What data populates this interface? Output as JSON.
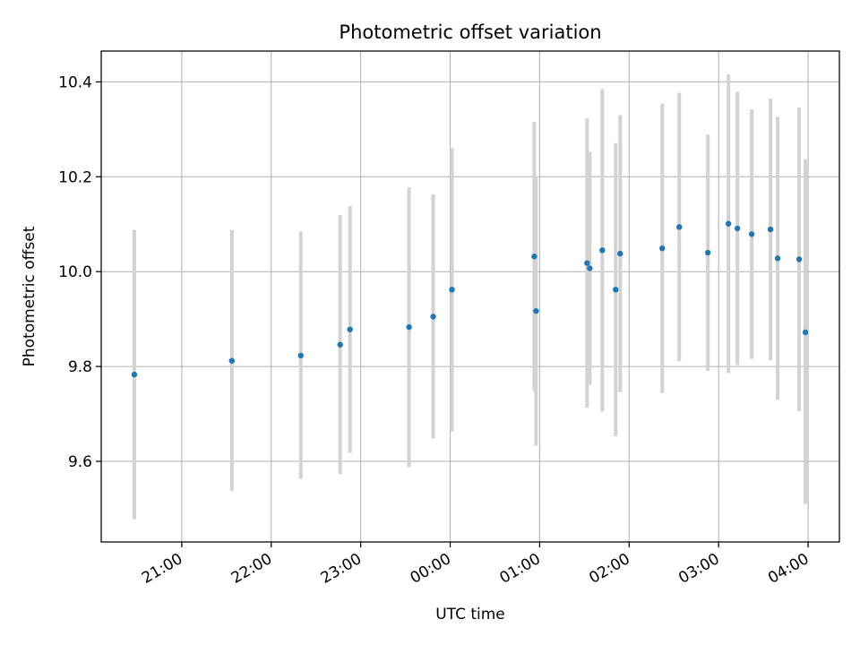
{
  "chart_data": {
    "type": "scatter",
    "title": "Photometric offset variation",
    "xlabel": "UTC time",
    "ylabel": "Photometric offset",
    "x_unit": "UTC hours (values past 24 are after midnight of the following day)",
    "xlim": [
      20.1,
      28.35
    ],
    "ylim": [
      9.43,
      10.465
    ],
    "x_ticks": [
      {
        "value": 21,
        "label": "21:00"
      },
      {
        "value": 22,
        "label": "22:00"
      },
      {
        "value": 23,
        "label": "23:00"
      },
      {
        "value": 24,
        "label": "00:00"
      },
      {
        "value": 25,
        "label": "01:00"
      },
      {
        "value": 26,
        "label": "02:00"
      },
      {
        "value": 27,
        "label": "03:00"
      },
      {
        "value": 28,
        "label": "04:00"
      }
    ],
    "y_ticks": [
      {
        "value": 9.6,
        "label": "9.6"
      },
      {
        "value": 9.8,
        "label": "9.8"
      },
      {
        "value": 10.0,
        "label": "10.0"
      },
      {
        "value": 10.2,
        "label": "10.2"
      },
      {
        "value": 10.4,
        "label": "10.4"
      }
    ],
    "grid": true,
    "colors": {
      "point": "#1f77b4",
      "errorbar": "#d3d3d3",
      "grid": "#b0b0b0",
      "axes": "#000000"
    },
    "points": [
      {
        "time": "20:28",
        "x": 20.47,
        "y": 9.783,
        "low": 9.478,
        "high": 10.088
      },
      {
        "time": "21:34",
        "x": 21.56,
        "y": 9.812,
        "low": 9.538,
        "high": 10.088
      },
      {
        "time": "22:20",
        "x": 22.33,
        "y": 9.823,
        "low": 9.563,
        "high": 10.085
      },
      {
        "time": "22:46",
        "x": 22.77,
        "y": 9.846,
        "low": 9.573,
        "high": 10.119
      },
      {
        "time": "22:53",
        "x": 22.88,
        "y": 9.878,
        "low": 9.618,
        "high": 10.138
      },
      {
        "time": "23:32",
        "x": 23.54,
        "y": 9.883,
        "low": 9.588,
        "high": 10.178
      },
      {
        "time": "23:49",
        "x": 23.81,
        "y": 9.905,
        "low": 9.648,
        "high": 10.163
      },
      {
        "time": "00:01",
        "x": 24.02,
        "y": 9.962,
        "low": 9.663,
        "high": 10.261
      },
      {
        "time": "00:56",
        "x": 24.94,
        "y": 10.032,
        "low": 9.748,
        "high": 10.316
      },
      {
        "time": "00:58",
        "x": 24.96,
        "y": 9.917,
        "low": 9.633,
        "high": 10.201
      },
      {
        "time": "01:32",
        "x": 25.53,
        "y": 10.018,
        "low": 9.713,
        "high": 10.323
      },
      {
        "time": "01:34",
        "x": 25.56,
        "y": 10.007,
        "low": 9.761,
        "high": 10.253
      },
      {
        "time": "01:42",
        "x": 25.7,
        "y": 10.045,
        "low": 9.705,
        "high": 10.385
      },
      {
        "time": "01:51",
        "x": 25.85,
        "y": 9.962,
        "low": 9.653,
        "high": 10.271
      },
      {
        "time": "01:54",
        "x": 25.9,
        "y": 10.038,
        "low": 9.746,
        "high": 10.33
      },
      {
        "time": "02:22",
        "x": 26.37,
        "y": 10.049,
        "low": 9.744,
        "high": 10.354
      },
      {
        "time": "02:34",
        "x": 26.56,
        "y": 10.094,
        "low": 9.811,
        "high": 10.377
      },
      {
        "time": "02:53",
        "x": 26.88,
        "y": 10.04,
        "low": 9.791,
        "high": 10.289
      },
      {
        "time": "03:07",
        "x": 27.11,
        "y": 10.101,
        "low": 9.786,
        "high": 10.416
      },
      {
        "time": "03:13",
        "x": 27.21,
        "y": 10.091,
        "low": 9.803,
        "high": 10.379
      },
      {
        "time": "03:22",
        "x": 27.37,
        "y": 10.079,
        "low": 9.816,
        "high": 10.342
      },
      {
        "time": "03:35",
        "x": 27.58,
        "y": 10.089,
        "low": 9.813,
        "high": 10.365
      },
      {
        "time": "03:40",
        "x": 27.66,
        "y": 10.028,
        "low": 9.73,
        "high": 10.326
      },
      {
        "time": "03:54",
        "x": 27.9,
        "y": 10.026,
        "low": 9.706,
        "high": 10.346
      },
      {
        "time": "03:58",
        "x": 27.97,
        "y": 9.872,
        "low": 9.51,
        "high": 10.237
      }
    ]
  }
}
